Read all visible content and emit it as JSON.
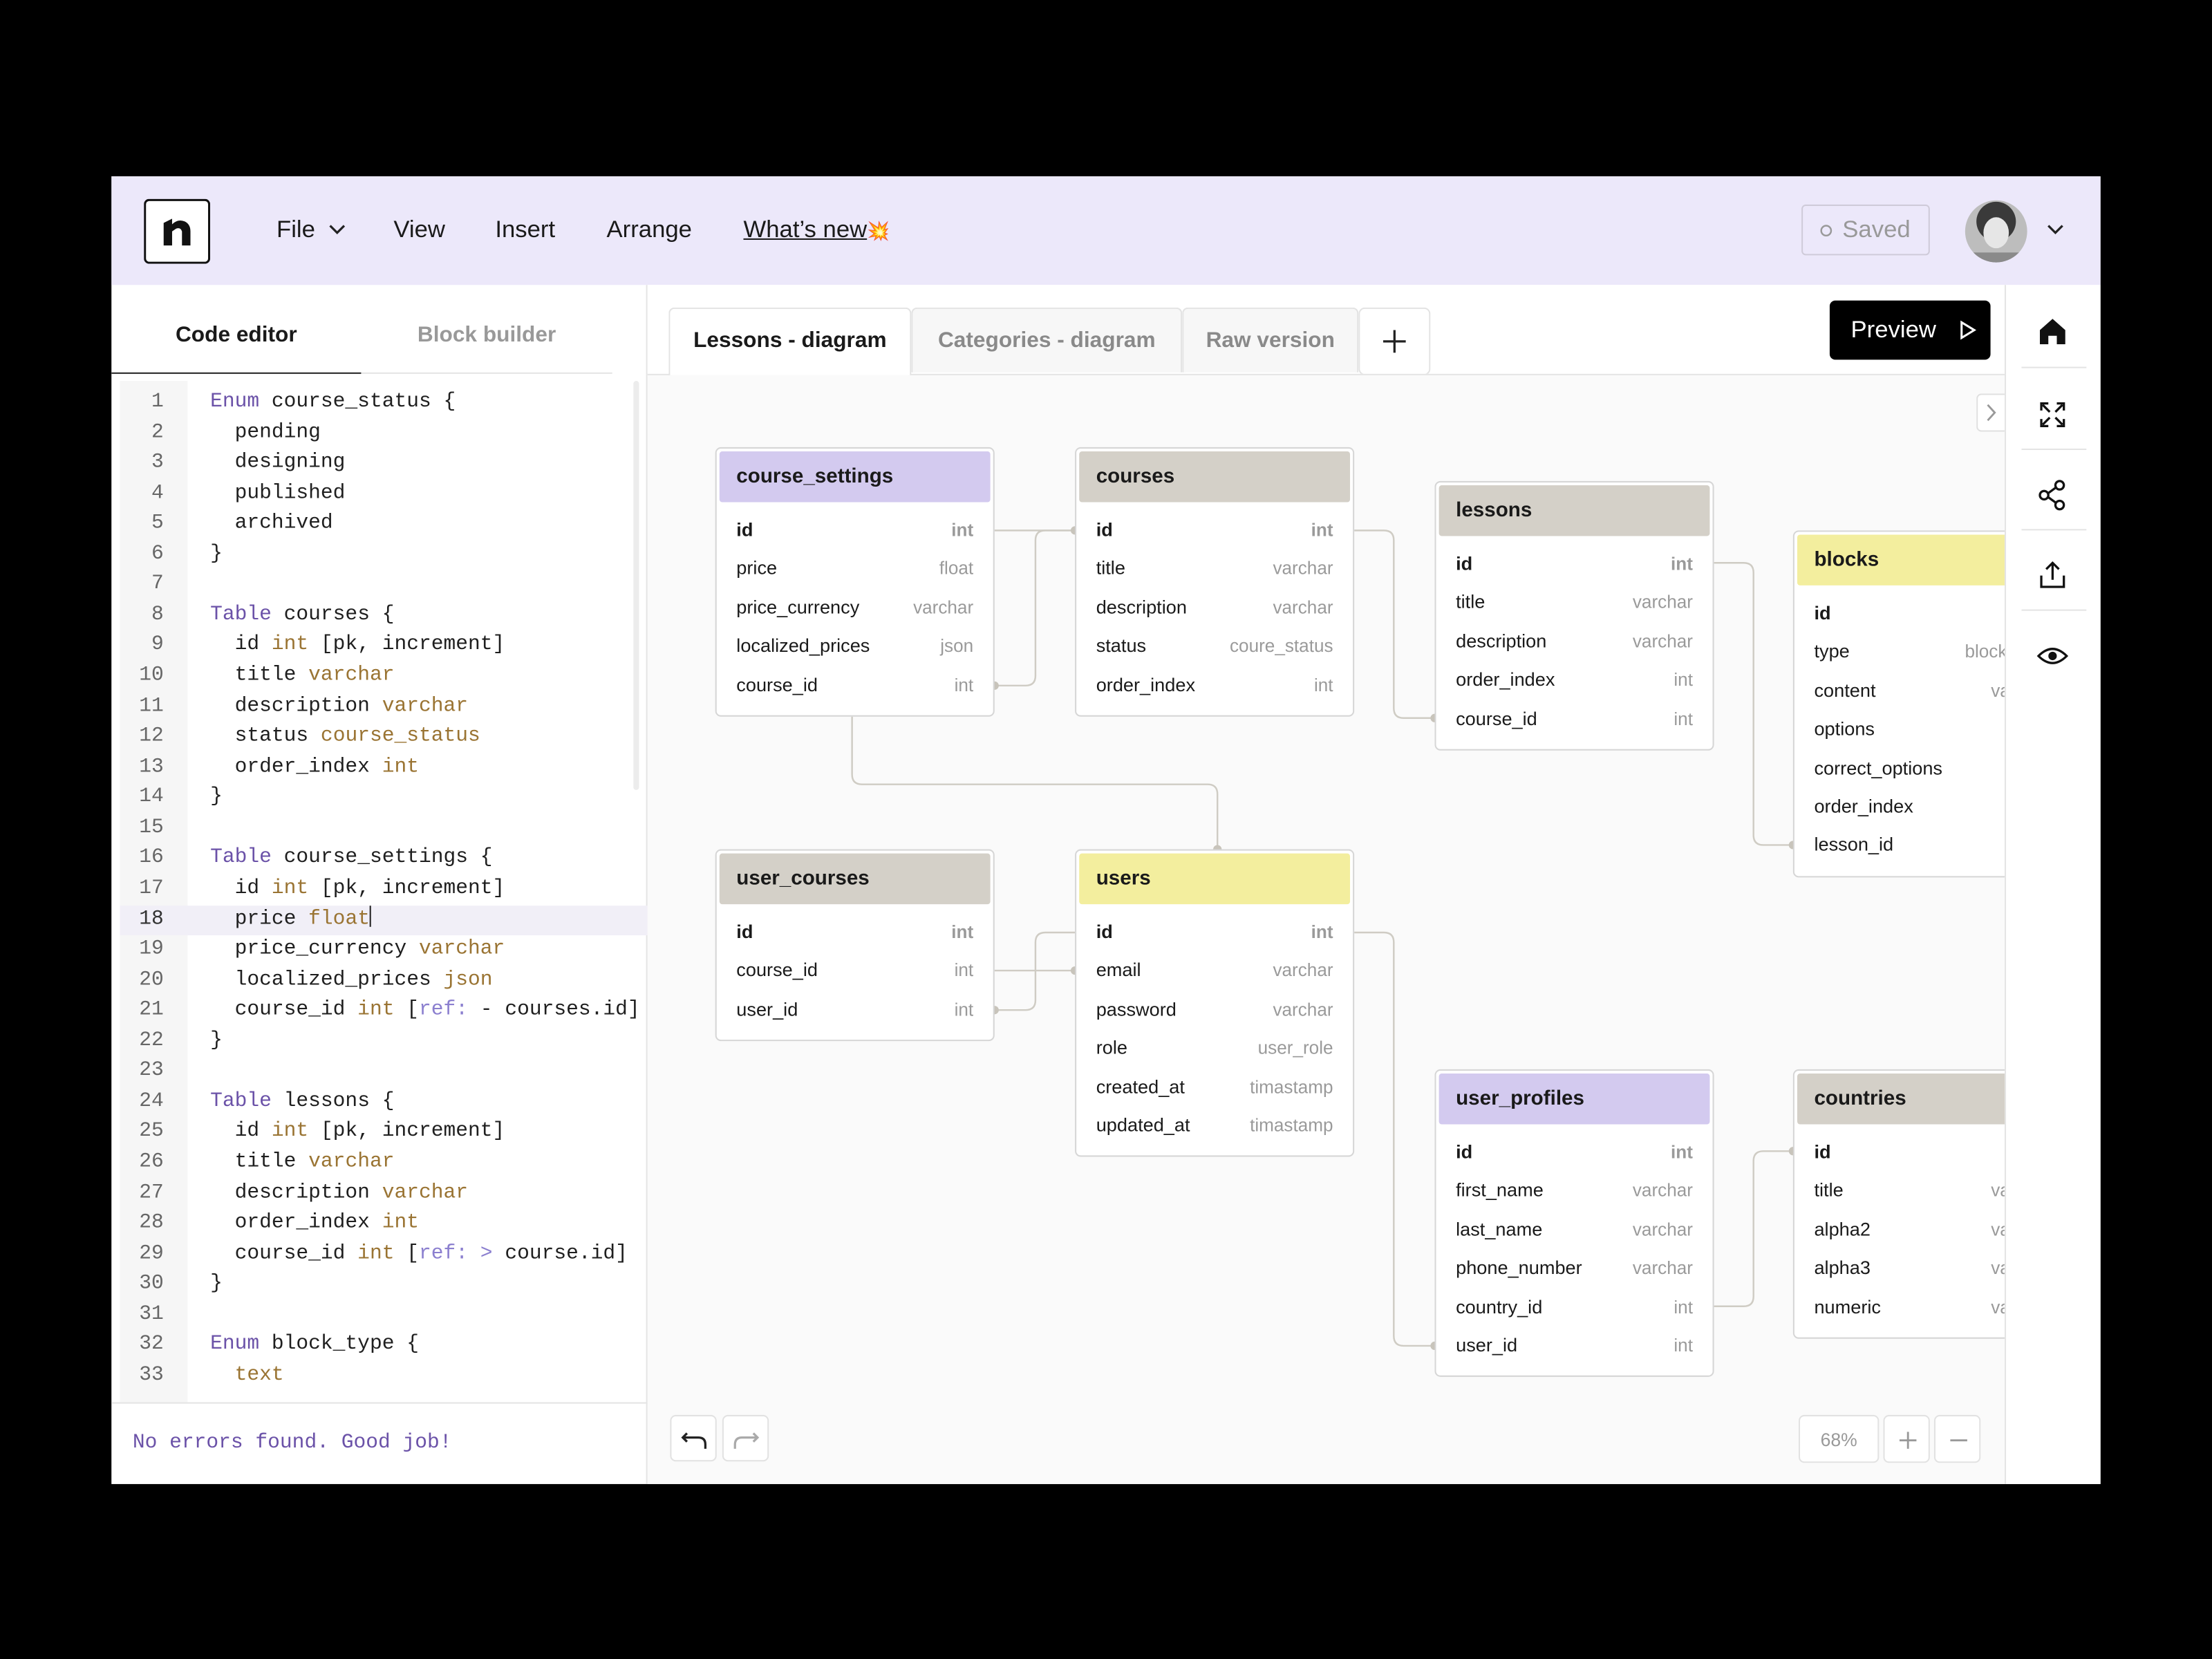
{
  "menu": {
    "file": "File",
    "view": "View",
    "insert": "Insert",
    "arrange": "Arrange",
    "whats_new": "What’s new",
    "whats_new_badge": "💥"
  },
  "status": "Saved",
  "editor_tabs": [
    "Code editor",
    "Block builder"
  ],
  "code": {
    "colors": {
      "kw": "#6b52a8",
      "ty": "#9a7433",
      "ref": "#8b7fcf"
    },
    "lines": [
      {
        "number": "1",
        "tokens": [
          [
            "Enum",
            "kw"
          ],
          [
            " course_status {"
          ]
        ]
      },
      {
        "number": "2",
        "tokens": [
          [
            "  pending"
          ]
        ]
      },
      {
        "number": "3",
        "tokens": [
          [
            "  designing"
          ]
        ]
      },
      {
        "number": "4",
        "tokens": [
          [
            "  published"
          ]
        ]
      },
      {
        "number": "5",
        "tokens": [
          [
            "  archived"
          ]
        ]
      },
      {
        "number": "6",
        "tokens": [
          [
            "}"
          ]
        ]
      },
      {
        "number": "7",
        "tokens": []
      },
      {
        "number": "8",
        "tokens": [
          [
            "Table",
            "kw"
          ],
          [
            " courses {"
          ]
        ]
      },
      {
        "number": "9",
        "tokens": [
          [
            "  id "
          ],
          [
            "int",
            "ty"
          ],
          [
            " [pk, increment]"
          ]
        ]
      },
      {
        "number": "10",
        "tokens": [
          [
            "  title "
          ],
          [
            "varchar",
            "ty"
          ]
        ]
      },
      {
        "number": "11",
        "tokens": [
          [
            "  description "
          ],
          [
            "varchar",
            "ty"
          ]
        ]
      },
      {
        "number": "12",
        "tokens": [
          [
            "  status "
          ],
          [
            "course_status",
            "ty"
          ]
        ]
      },
      {
        "number": "13",
        "tokens": [
          [
            "  order_index "
          ],
          [
            "int",
            "ty"
          ]
        ]
      },
      {
        "number": "14",
        "tokens": [
          [
            "}"
          ]
        ]
      },
      {
        "number": "15",
        "tokens": []
      },
      {
        "number": "16",
        "tokens": [
          [
            "Table",
            "kw"
          ],
          [
            " course_settings {"
          ]
        ]
      },
      {
        "number": "17",
        "tokens": [
          [
            "  id "
          ],
          [
            "int",
            "ty"
          ],
          [
            " [pk, increment]"
          ]
        ]
      },
      {
        "number": "18",
        "active": true,
        "tokens": [
          [
            "  price "
          ],
          [
            "float",
            "ty"
          ]
        ]
      },
      {
        "number": "19",
        "tokens": [
          [
            "  price_currency "
          ],
          [
            "varchar",
            "ty"
          ]
        ]
      },
      {
        "number": "20",
        "tokens": [
          [
            "  localized_prices "
          ],
          [
            "json",
            "ty"
          ]
        ]
      },
      {
        "number": "21",
        "tokens": [
          [
            "  course_id "
          ],
          [
            "int",
            "ty"
          ],
          [
            " ["
          ],
          [
            "ref:",
            "ref"
          ],
          [
            " - "
          ],
          [
            "courses.id]"
          ]
        ]
      },
      {
        "number": "22",
        "tokens": [
          [
            "}"
          ]
        ]
      },
      {
        "number": "23",
        "tokens": []
      },
      {
        "number": "24",
        "tokens": [
          [
            "Table",
            "kw"
          ],
          [
            " lessons {"
          ]
        ]
      },
      {
        "number": "25",
        "tokens": [
          [
            "  id "
          ],
          [
            "int",
            "ty"
          ],
          [
            " [pk, increment]"
          ]
        ]
      },
      {
        "number": "26",
        "tokens": [
          [
            "  title "
          ],
          [
            "varchar",
            "ty"
          ]
        ]
      },
      {
        "number": "27",
        "tokens": [
          [
            "  description "
          ],
          [
            "varchar",
            "ty"
          ]
        ]
      },
      {
        "number": "28",
        "tokens": [
          [
            "  order_index "
          ],
          [
            "int",
            "ty"
          ]
        ]
      },
      {
        "number": "29",
        "tokens": [
          [
            "  course_id "
          ],
          [
            "int",
            "ty"
          ],
          [
            " ["
          ],
          [
            "ref:",
            "ref"
          ],
          [
            " > ",
            "ref"
          ],
          [
            "course.id]"
          ]
        ]
      },
      {
        "number": "30",
        "tokens": [
          [
            "}"
          ]
        ]
      },
      {
        "number": "31",
        "tokens": []
      },
      {
        "number": "32",
        "tokens": [
          [
            "Enum",
            "kw"
          ],
          [
            " block_type {"
          ]
        ]
      },
      {
        "number": "33",
        "tokens": [
          [
            "  text",
            "ty"
          ]
        ]
      }
    ]
  },
  "console": "No errors found. Good job!",
  "diagram_tabs": [
    "Lessons - diagram",
    "Categories - diagram",
    "Raw version"
  ],
  "preview": "Preview",
  "zoom": "68%",
  "tables": [
    {
      "name": "course_settings",
      "color": "#d3caef",
      "fields": [
        {
          "name": "id",
          "type": "int"
        },
        {
          "name": "price",
          "type": "float"
        },
        {
          "name": "price_currency",
          "type": "varchar"
        },
        {
          "name": "localized_prices",
          "type": "json"
        },
        {
          "name": "course_id",
          "type": "int"
        }
      ]
    },
    {
      "name": "courses",
      "color": "#d4d0c8",
      "fields": [
        {
          "name": "id",
          "type": "int"
        },
        {
          "name": "title",
          "type": "varchar"
        },
        {
          "name": "description",
          "type": "varchar"
        },
        {
          "name": "status",
          "type": "coure_status"
        },
        {
          "name": "order_index",
          "type": "int"
        }
      ]
    },
    {
      "name": "lessons",
      "color": "#d4d0c8",
      "fields": [
        {
          "name": "id",
          "type": "int"
        },
        {
          "name": "title",
          "type": "varchar"
        },
        {
          "name": "description",
          "type": "varchar"
        },
        {
          "name": "order_index",
          "type": "int"
        },
        {
          "name": "course_id",
          "type": "int"
        }
      ]
    },
    {
      "name": "blocks",
      "color": "#f3ee9e",
      "fields": [
        {
          "name": "id"
        },
        {
          "name": "type",
          "type": "block_type"
        },
        {
          "name": "content",
          "type": "varchar"
        },
        {
          "name": "options"
        },
        {
          "name": "correct_options"
        },
        {
          "name": "order_index"
        },
        {
          "name": "lesson_id"
        }
      ]
    },
    {
      "name": "user_courses",
      "color": "#d4d0c8",
      "fields": [
        {
          "name": "id",
          "type": "int"
        },
        {
          "name": "course_id",
          "type": "int"
        },
        {
          "name": "user_id",
          "type": "int"
        }
      ]
    },
    {
      "name": "users",
      "color": "#f3ee9e",
      "fields": [
        {
          "name": "id",
          "type": "int"
        },
        {
          "name": "email",
          "type": "varchar"
        },
        {
          "name": "password",
          "type": "varchar"
        },
        {
          "name": "role",
          "type": "user_role"
        },
        {
          "name": "created_at",
          "type": "timastamp"
        },
        {
          "name": "updated_at",
          "type": "timastamp"
        }
      ]
    },
    {
      "name": "user_profiles",
      "color": "#d3caef",
      "fields": [
        {
          "name": "id",
          "type": "int"
        },
        {
          "name": "first_name",
          "type": "varchar"
        },
        {
          "name": "last_name",
          "type": "varchar"
        },
        {
          "name": "phone_number",
          "type": "varchar"
        },
        {
          "name": "country_id",
          "type": "int"
        },
        {
          "name": "user_id",
          "type": "int"
        }
      ]
    },
    {
      "name": "countries",
      "color": "#d4d0c8",
      "fields": [
        {
          "name": "id"
        },
        {
          "name": "title",
          "type": "varchar"
        },
        {
          "name": "alpha2",
          "type": "varchar"
        },
        {
          "name": "alpha3",
          "type": "varchar"
        },
        {
          "name": "numeric",
          "type": "varchar"
        }
      ]
    }
  ]
}
